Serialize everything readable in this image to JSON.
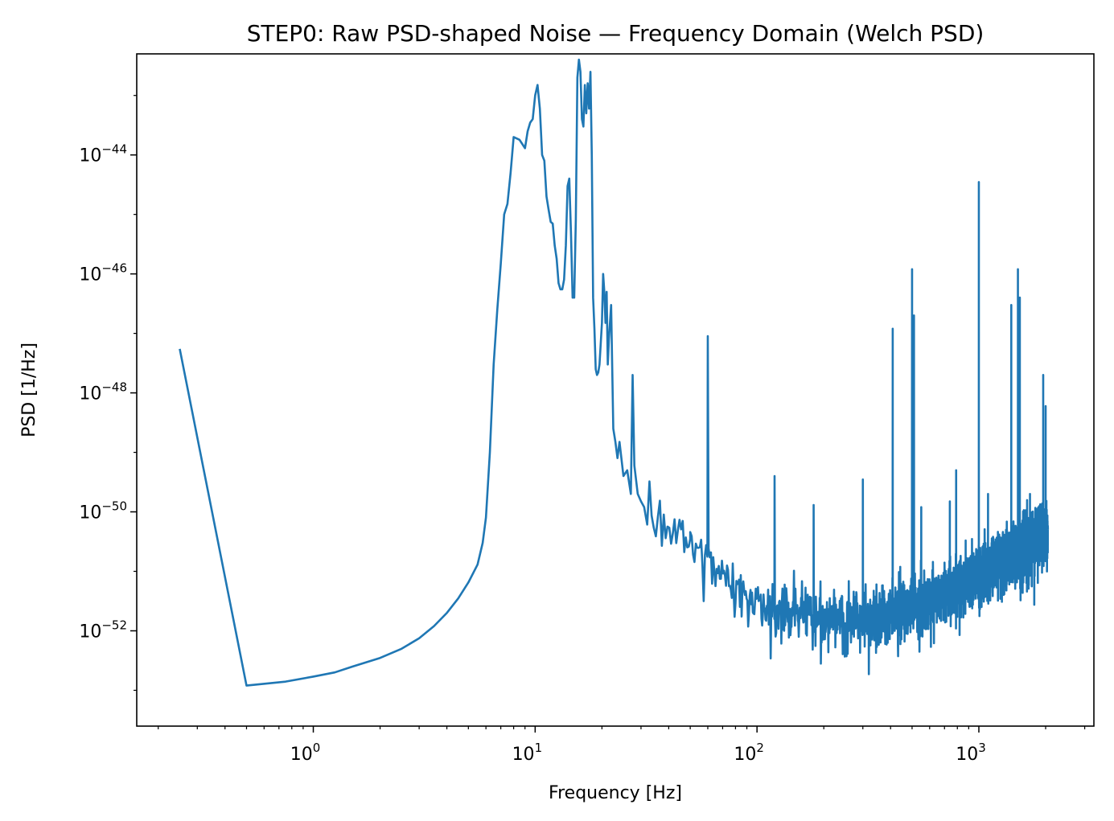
{
  "chart_data": {
    "type": "line",
    "title": "STEP0: Raw PSD-shaped Noise — Frequency Domain (Welch PSD)",
    "xlabel": "Frequency [Hz]",
    "ylabel": "PSD [1/Hz]",
    "xscale": "log",
    "yscale": "log",
    "xlim": [
      0.16,
      3300
    ],
    "ylim": [
      2.5e-54,
      5e-43
    ],
    "grid": false,
    "x_ticks": [
      {
        "value": 1,
        "base": "10",
        "exp": "0"
      },
      {
        "value": 10,
        "base": "10",
        "exp": "1"
      },
      {
        "value": 100,
        "base": "10",
        "exp": "2"
      },
      {
        "value": 1000,
        "base": "10",
        "exp": "3"
      }
    ],
    "y_ticks": [
      {
        "value": 1e-52,
        "base": "10",
        "exp": "−52"
      },
      {
        "value": 1e-50,
        "base": "10",
        "exp": "−50"
      },
      {
        "value": 1e-48,
        "base": "10",
        "exp": "−48"
      },
      {
        "value": 1e-46,
        "base": "10",
        "exp": "−46"
      },
      {
        "value": 1e-44,
        "base": "10",
        "exp": "−44"
      }
    ],
    "series": [
      {
        "name": "PSD",
        "color": "#1f77b4",
        "noise_start_hz": 32,
        "points": [
          [
            0.25,
            5.5e-48
          ],
          [
            0.5,
            1.2e-53
          ],
          [
            0.75,
            1.4e-53
          ],
          [
            1.0,
            1.7e-53
          ],
          [
            1.25,
            2e-53
          ],
          [
            1.5,
            2.5e-53
          ],
          [
            2.0,
            3.5e-53
          ],
          [
            2.5,
            5e-53
          ],
          [
            3.0,
            7.5e-53
          ],
          [
            3.5,
            1.2e-52
          ],
          [
            4.0,
            2e-52
          ],
          [
            4.5,
            3.5e-52
          ],
          [
            5.0,
            6.5e-52
          ],
          [
            5.5,
            1.3e-51
          ],
          [
            5.8,
            3e-51
          ],
          [
            6.0,
            8e-51
          ],
          [
            6.25,
            1e-49
          ],
          [
            6.5,
            3e-48
          ],
          [
            6.75,
            2.5e-47
          ],
          [
            7.0,
            1.5e-46
          ],
          [
            7.25,
            1e-45
          ],
          [
            7.5,
            1.5e-45
          ],
          [
            7.75,
            5e-45
          ],
          [
            8.0,
            2e-44
          ],
          [
            8.5,
            1.8e-44
          ],
          [
            9.0,
            1.3e-44
          ],
          [
            9.25,
            2.5e-44
          ],
          [
            9.5,
            3.5e-44
          ],
          [
            9.75,
            4e-44
          ],
          [
            10.0,
            1e-43
          ],
          [
            10.25,
            1.5e-43
          ],
          [
            10.5,
            6e-44
          ],
          [
            10.75,
            1e-44
          ],
          [
            11.0,
            8e-45
          ],
          [
            11.25,
            2e-45
          ],
          [
            11.5,
            1.2e-45
          ],
          [
            11.75,
            7.5e-46
          ],
          [
            12.0,
            7e-46
          ],
          [
            12.25,
            3e-46
          ],
          [
            12.5,
            1.8e-46
          ],
          [
            12.75,
            7e-47
          ],
          [
            13.0,
            5.5e-47
          ],
          [
            13.25,
            5.5e-47
          ],
          [
            13.5,
            8e-47
          ],
          [
            13.75,
            3e-46
          ],
          [
            14.0,
            3e-45
          ],
          [
            14.25,
            4e-45
          ],
          [
            14.5,
            5e-46
          ],
          [
            14.75,
            4e-47
          ],
          [
            15.0,
            4e-47
          ],
          [
            15.25,
            8e-46
          ],
          [
            15.5,
            2e-43
          ],
          [
            15.75,
            4e-43
          ],
          [
            16.0,
            2.5e-43
          ],
          [
            16.25,
            4e-44
          ],
          [
            16.5,
            3e-44
          ],
          [
            16.75,
            1.5e-43
          ],
          [
            17.0,
            5e-44
          ],
          [
            17.25,
            1.6e-43
          ],
          [
            17.5,
            6e-44
          ],
          [
            17.75,
            2.5e-43
          ],
          [
            18.0,
            1e-44
          ],
          [
            18.25,
            4e-47
          ],
          [
            18.5,
            1.2e-47
          ],
          [
            18.75,
            2.5e-48
          ],
          [
            19.0,
            2e-48
          ],
          [
            19.25,
            2.2e-48
          ],
          [
            19.5,
            3e-48
          ],
          [
            20.0,
            1.5e-47
          ],
          [
            20.25,
            1e-46
          ],
          [
            20.5,
            5e-47
          ],
          [
            20.75,
            1.5e-47
          ],
          [
            21.0,
            5e-47
          ],
          [
            21.25,
            3e-48
          ],
          [
            21.5,
            8e-48
          ],
          [
            22.0,
            3e-47
          ],
          [
            22.5,
            2.5e-49
          ],
          [
            23.0,
            1.5e-49
          ],
          [
            23.5,
            8e-50
          ],
          [
            24.0,
            1.5e-49
          ],
          [
            25.0,
            4e-50
          ],
          [
            26.0,
            5e-50
          ],
          [
            27.0,
            2e-50
          ],
          [
            27.5,
            2e-48
          ],
          [
            28.0,
            6e-50
          ],
          [
            29.0,
            2e-50
          ],
          [
            30.0,
            1.5e-50
          ],
          [
            31.0,
            1.2e-50
          ],
          [
            50.0,
            3.5e-51
          ],
          [
            60.0,
            9e-48
          ],
          [
            60.5,
            3e-51
          ],
          [
            120.0,
            4e-50
          ],
          [
            180.0,
            1.3e-50
          ],
          [
            300.0,
            3.5e-50
          ],
          [
            409.0,
            1.2e-47
          ],
          [
            500.0,
            1.2e-46
          ],
          [
            510.0,
            2e-47
          ],
          [
            550.0,
            1.2e-50
          ],
          [
            740.0,
            1.5e-50
          ],
          [
            790.0,
            5e-50
          ],
          [
            1000.0,
            3.5e-45
          ],
          [
            1100.0,
            2e-50
          ],
          [
            1400.0,
            3e-47
          ],
          [
            1500.0,
            1.2e-46
          ],
          [
            1530.0,
            4e-47
          ],
          [
            1700.0,
            2e-50
          ],
          [
            1950.0,
            2e-48
          ],
          [
            2000.0,
            6e-49
          ],
          [
            2048.0,
            5e-51
          ]
        ]
      }
    ]
  }
}
